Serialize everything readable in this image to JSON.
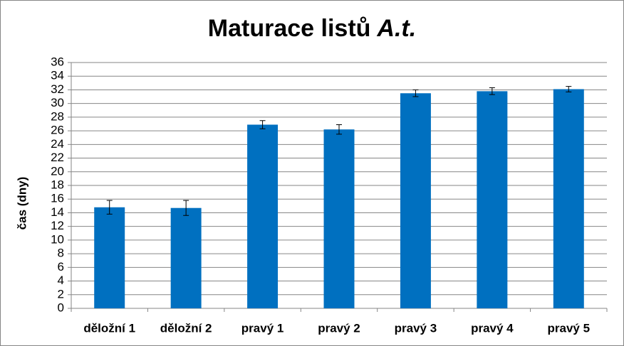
{
  "chart_data": {
    "type": "bar",
    "title": [
      "Maturace listů",
      "A.t."
    ],
    "y_label": "čas (dny)",
    "categories": [
      "děložní 1",
      "děložní 2",
      "pravý 1",
      "pravý 2",
      "pravý 3",
      "pravý 4",
      "pravý 5"
    ],
    "values": [
      14.8,
      14.7,
      26.9,
      26.2,
      31.5,
      31.8,
      32.1
    ],
    "errors": [
      1.0,
      1.1,
      0.6,
      0.7,
      0.5,
      0.5,
      0.4
    ],
    "color": "#0070c0",
    "ylim": [
      0,
      36
    ],
    "yticks": [
      0,
      2,
      4,
      6,
      8,
      10,
      12,
      14,
      16,
      18,
      20,
      22,
      24,
      26,
      28,
      30,
      32,
      34,
      36
    ],
    "grid": true
  }
}
